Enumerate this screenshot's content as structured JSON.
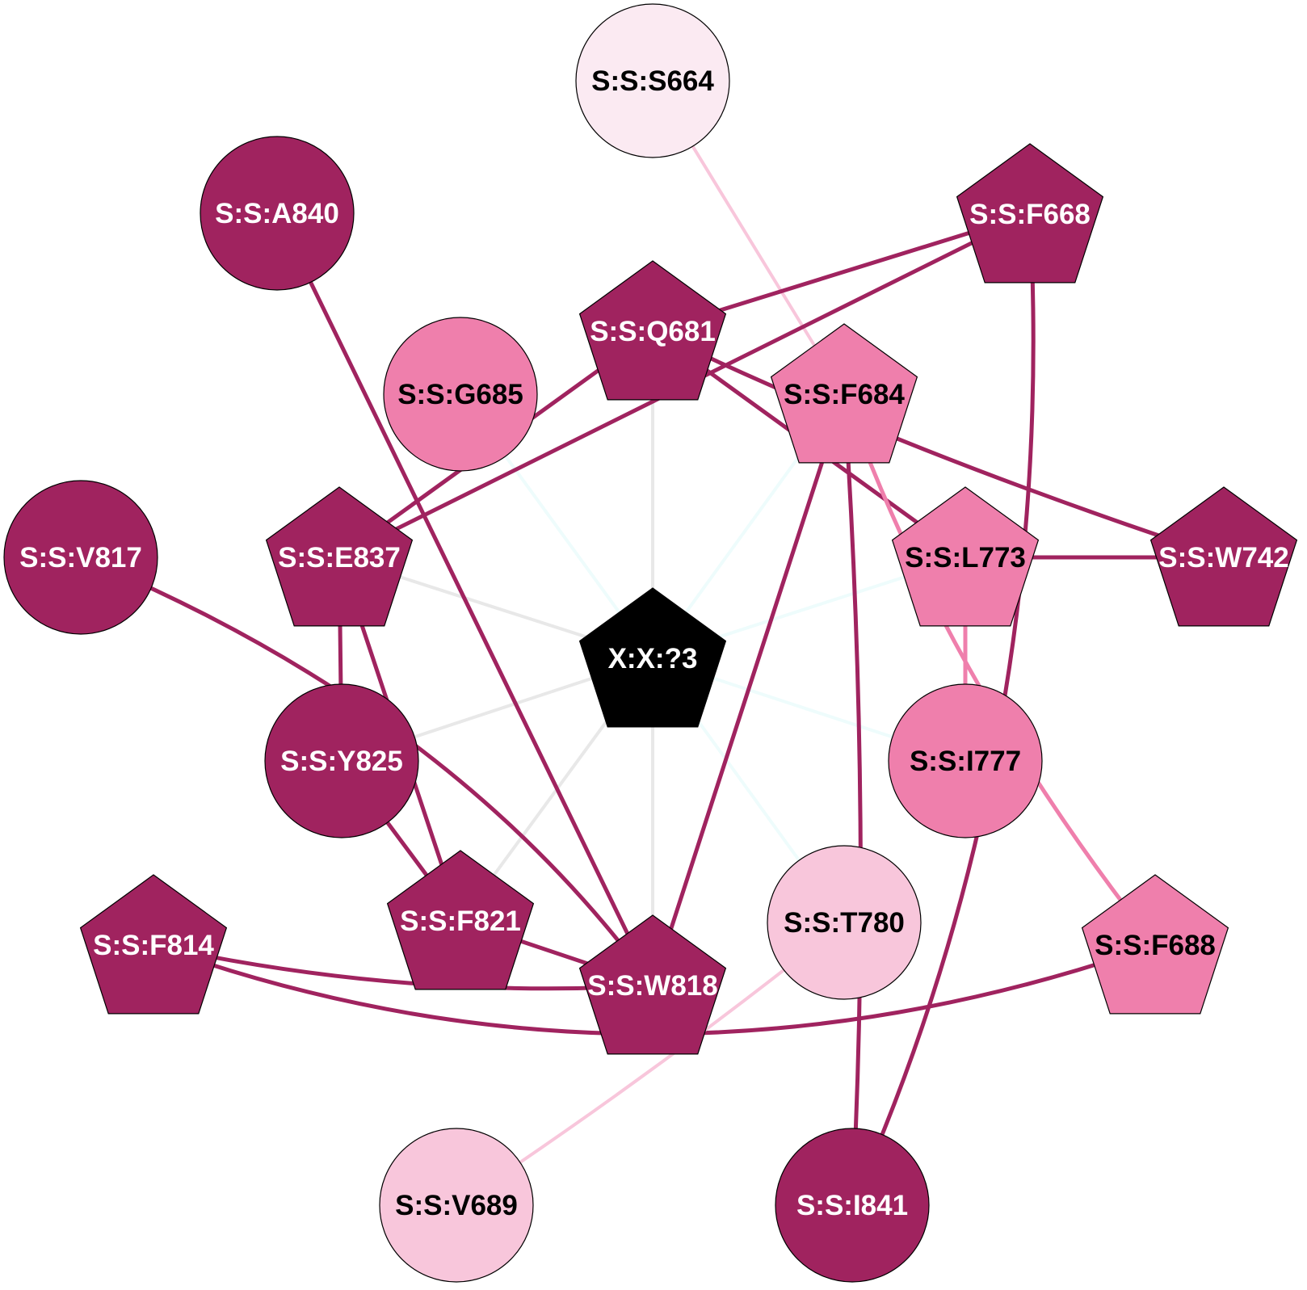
{
  "colors": {
    "dark": "#a0235f",
    "medium": "#ef7fac",
    "light": "#f8c6db",
    "pale": "#fbeaf2",
    "center": "#000000",
    "edge_gray": "#e8e8e8",
    "edge_cyan": "#eefcfc",
    "edge_light": "#f8c6db",
    "label_on_dark": "#ffffff",
    "label_on_light": "#000000",
    "node_stroke": "#000000"
  },
  "nodes": [
    {
      "id": "S:S:S664",
      "label": "S:S:S664",
      "shape": "circle",
      "fill": "pale"
    },
    {
      "id": "S:S:A840",
      "label": "S:S:A840",
      "shape": "circle",
      "fill": "dark"
    },
    {
      "id": "S:S:F668",
      "label": "S:S:F668",
      "shape": "pentagon",
      "fill": "dark"
    },
    {
      "id": "S:S:Q681",
      "label": "S:S:Q681",
      "shape": "pentagon",
      "fill": "dark"
    },
    {
      "id": "S:S:G685",
      "label": "S:S:G685",
      "shape": "circle",
      "fill": "medium"
    },
    {
      "id": "S:S:F684",
      "label": "S:S:F684",
      "shape": "pentagon",
      "fill": "medium"
    },
    {
      "id": "S:S:V817",
      "label": "S:S:V817",
      "shape": "circle",
      "fill": "dark"
    },
    {
      "id": "S:S:E837",
      "label": "S:S:E837",
      "shape": "pentagon",
      "fill": "dark"
    },
    {
      "id": "S:S:L773",
      "label": "S:S:L773",
      "shape": "pentagon",
      "fill": "medium"
    },
    {
      "id": "S:S:W742",
      "label": "S:S:W742",
      "shape": "pentagon",
      "fill": "dark"
    },
    {
      "id": "X:X:?3",
      "label": "X:X:?3",
      "shape": "pentagon",
      "fill": "center"
    },
    {
      "id": "S:S:Y825",
      "label": "S:S:Y825",
      "shape": "circle",
      "fill": "dark"
    },
    {
      "id": "S:S:I777",
      "label": "S:S:I777",
      "shape": "circle",
      "fill": "medium"
    },
    {
      "id": "S:S:F821",
      "label": "S:S:F821",
      "shape": "pentagon",
      "fill": "dark"
    },
    {
      "id": "S:S:T780",
      "label": "S:S:T780",
      "shape": "circle",
      "fill": "light"
    },
    {
      "id": "S:S:F814",
      "label": "S:S:F814",
      "shape": "pentagon",
      "fill": "dark"
    },
    {
      "id": "S:S:F688",
      "label": "S:S:F688",
      "shape": "pentagon",
      "fill": "medium"
    },
    {
      "id": "S:S:W818",
      "label": "S:S:W818",
      "shape": "pentagon",
      "fill": "dark"
    },
    {
      "id": "S:S:V689",
      "label": "S:S:V689",
      "shape": "circle",
      "fill": "light"
    },
    {
      "id": "S:S:I841",
      "label": "S:S:I841",
      "shape": "circle",
      "fill": "dark"
    }
  ],
  "edges": [
    {
      "from": "X:X:?3",
      "to": "S:S:Q681",
      "color": "edge_gray",
      "weight": "thin"
    },
    {
      "from": "X:X:?3",
      "to": "S:S:W818",
      "color": "edge_gray",
      "weight": "thin"
    },
    {
      "from": "X:X:?3",
      "to": "S:S:E837",
      "color": "edge_gray",
      "weight": "thin"
    },
    {
      "from": "X:X:?3",
      "to": "S:S:Y825",
      "color": "edge_gray",
      "weight": "thin"
    },
    {
      "from": "X:X:?3",
      "to": "S:S:F821",
      "color": "edge_gray",
      "weight": "thin"
    },
    {
      "from": "X:X:?3",
      "to": "S:S:G685",
      "color": "edge_cyan",
      "weight": "thin"
    },
    {
      "from": "X:X:?3",
      "to": "S:S:F684",
      "color": "edge_cyan",
      "weight": "thin"
    },
    {
      "from": "X:X:?3",
      "to": "S:S:L773",
      "color": "edge_cyan",
      "weight": "thin"
    },
    {
      "from": "X:X:?3",
      "to": "S:S:I777",
      "color": "edge_cyan",
      "weight": "thin"
    },
    {
      "from": "X:X:?3",
      "to": "S:S:T780",
      "color": "edge_cyan",
      "weight": "thin"
    },
    {
      "from": "S:S:S664",
      "to": "S:S:F684",
      "color": "edge_light",
      "weight": "thin"
    },
    {
      "from": "S:S:F668",
      "to": "S:S:Q681",
      "color": "dark",
      "weight": "thick"
    },
    {
      "from": "S:S:F668",
      "to": "S:S:E837",
      "color": "dark",
      "weight": "thick"
    },
    {
      "from": "S:S:F668",
      "to": "S:S:I841",
      "color": "dark",
      "weight": "thick"
    },
    {
      "from": "S:S:Q681",
      "to": "S:S:E837",
      "color": "dark",
      "weight": "thick"
    },
    {
      "from": "S:S:Q681",
      "to": "S:S:L773",
      "color": "dark",
      "weight": "thick"
    },
    {
      "from": "S:S:Q681",
      "to": "S:S:W742",
      "color": "dark",
      "weight": "thick"
    },
    {
      "from": "S:S:A840",
      "to": "S:S:W818",
      "color": "dark",
      "weight": "thick"
    },
    {
      "from": "S:S:F684",
      "to": "S:S:W818",
      "color": "dark",
      "weight": "thick"
    },
    {
      "from": "S:S:F684",
      "to": "S:S:I841",
      "color": "dark",
      "weight": "thick"
    },
    {
      "from": "S:S:F684",
      "to": "S:S:F688",
      "color": "medium",
      "weight": "thick"
    },
    {
      "from": "S:S:L773",
      "to": "S:S:W742",
      "color": "dark",
      "weight": "thick"
    },
    {
      "from": "S:S:L773",
      "to": "S:S:I777",
      "color": "medium",
      "weight": "thick"
    },
    {
      "from": "S:S:V817",
      "to": "S:S:W818",
      "color": "dark",
      "weight": "thick"
    },
    {
      "from": "S:S:E837",
      "to": "S:S:Y825",
      "color": "dark",
      "weight": "thick"
    },
    {
      "from": "S:S:E837",
      "to": "S:S:F821",
      "color": "dark",
      "weight": "thick"
    },
    {
      "from": "S:S:Y825",
      "to": "S:S:F821",
      "color": "dark",
      "weight": "thick"
    },
    {
      "from": "S:S:F821",
      "to": "S:S:W818",
      "color": "dark",
      "weight": "thick"
    },
    {
      "from": "S:S:F814",
      "to": "S:S:W818",
      "color": "dark",
      "weight": "thick"
    },
    {
      "from": "S:S:F814",
      "to": "S:S:F688",
      "color": "dark",
      "weight": "thick"
    },
    {
      "from": "S:S:T780",
      "to": "S:S:V689",
      "color": "edge_light",
      "weight": "thin"
    }
  ]
}
